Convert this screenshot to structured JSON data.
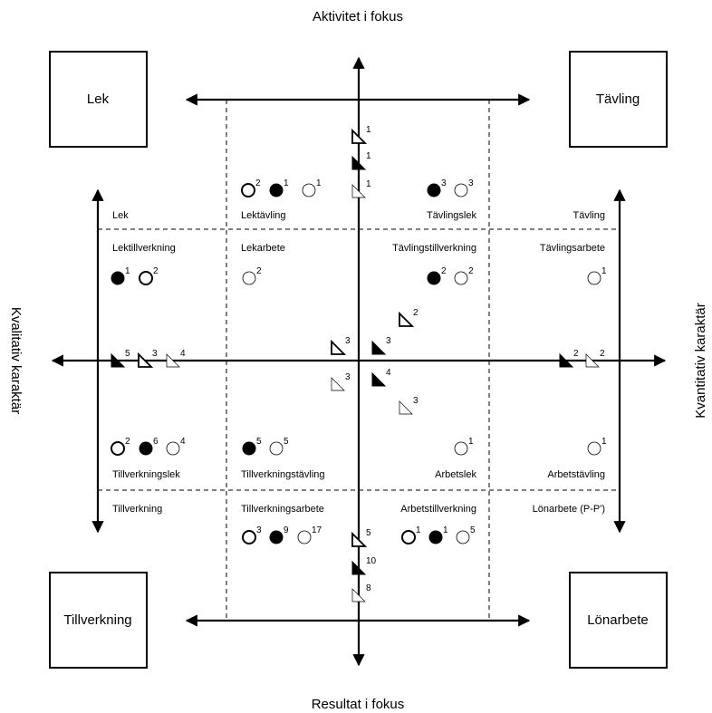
{
  "axes": {
    "top": "Aktivitet i fokus",
    "bottom": "Resultat i fokus",
    "left": "Kvalitativ karaktär",
    "right": "Kvantitativ karaktär"
  },
  "corners": {
    "top_left": "Lek",
    "top_right": "Tävling",
    "bottom_left": "Tillverkning",
    "bottom_right": "Lönarbete"
  },
  "regions": {
    "lek": "Lek",
    "lektavling": "Lektävling",
    "tavlingslek": "Tävlingslek",
    "tavling": "Tävling",
    "lektillverkning": "Lektillverkning",
    "lekarbete": "Lekarbete",
    "tavlingstillverkning": "Tävlingstillverkning",
    "tavlingsarbete": "Tävlingsarbete",
    "tillverkningslek": "Tillverkningslek",
    "tillverkningstavling": "Tillverkningstävling",
    "arbetslek": "Arbetslek",
    "arbetstavling": "Arbetstävling",
    "tillverkning": "Tillverkning",
    "tillverkningsarbete": "Tillverkningsarbete",
    "arbetstillverkning": "Arbetstillverkning",
    "lonarbete": "Lönarbete  (P-P')"
  },
  "markers": [
    {
      "shape": "circle",
      "style": "outline",
      "count": "2"
    },
    {
      "shape": "circle",
      "style": "filled",
      "count": "1"
    },
    {
      "shape": "circle",
      "style": "thin",
      "count": "1"
    },
    {
      "shape": "circle",
      "style": "filled",
      "count": "3"
    },
    {
      "shape": "circle",
      "style": "thin",
      "count": "3"
    },
    {
      "shape": "circle",
      "style": "filled",
      "count": "1"
    },
    {
      "shape": "circle",
      "style": "outline",
      "count": "2"
    },
    {
      "shape": "circle",
      "style": "thin",
      "count": "2"
    },
    {
      "shape": "circle",
      "style": "filled",
      "count": "2"
    },
    {
      "shape": "circle",
      "style": "thin",
      "count": "2"
    },
    {
      "shape": "circle",
      "style": "thin",
      "count": "1"
    },
    {
      "shape": "circle",
      "style": "outline",
      "count": "2"
    },
    {
      "shape": "circle",
      "style": "filled",
      "count": "6"
    },
    {
      "shape": "circle",
      "style": "thin",
      "count": "4"
    },
    {
      "shape": "circle",
      "style": "filled",
      "count": "5"
    },
    {
      "shape": "circle",
      "style": "thin",
      "count": "5"
    },
    {
      "shape": "circle",
      "style": "thin",
      "count": "1"
    },
    {
      "shape": "circle",
      "style": "thin",
      "count": "1"
    },
    {
      "shape": "circle",
      "style": "outline",
      "count": "3"
    },
    {
      "shape": "circle",
      "style": "filled",
      "count": "9"
    },
    {
      "shape": "circle",
      "style": "thin",
      "count": "17"
    },
    {
      "shape": "circle",
      "style": "outline",
      "count": "1"
    },
    {
      "shape": "circle",
      "style": "filled",
      "count": "1"
    },
    {
      "shape": "circle",
      "style": "thin",
      "count": "5"
    },
    {
      "shape": "triangle",
      "style": "outline",
      "count": "1"
    },
    {
      "shape": "triangle",
      "style": "filled",
      "count": "1"
    },
    {
      "shape": "triangle",
      "style": "thin",
      "count": "1"
    },
    {
      "shape": "triangle",
      "style": "outline",
      "count": "5"
    },
    {
      "shape": "triangle",
      "style": "filled",
      "count": "10"
    },
    {
      "shape": "triangle",
      "style": "thin",
      "count": "8"
    },
    {
      "shape": "triangle",
      "style": "filled",
      "count": "5"
    },
    {
      "shape": "triangle",
      "style": "outline",
      "count": "3"
    },
    {
      "shape": "triangle",
      "style": "thin",
      "count": "4"
    },
    {
      "shape": "triangle",
      "style": "filled",
      "count": "2"
    },
    {
      "shape": "triangle",
      "style": "thin",
      "count": "2"
    },
    {
      "shape": "triangle",
      "style": "outline",
      "count": "2"
    },
    {
      "shape": "triangle",
      "style": "outline",
      "count": "3"
    },
    {
      "shape": "triangle",
      "style": "filled",
      "count": "3"
    },
    {
      "shape": "triangle",
      "style": "thin",
      "count": "3"
    },
    {
      "shape": "triangle",
      "style": "filled",
      "count": "4"
    },
    {
      "shape": "triangle",
      "style": "thin",
      "count": "3"
    }
  ]
}
